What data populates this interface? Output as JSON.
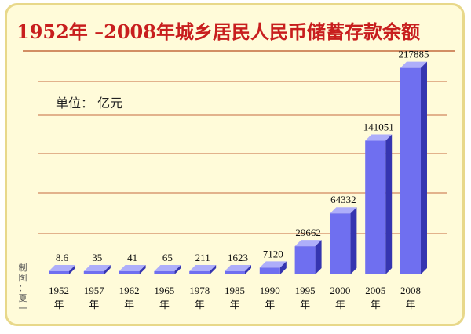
{
  "chart_data": {
    "type": "bar",
    "title": "1952年 –2008年城乡居民人民币储蓄存款余额",
    "unit_label": "单位：  亿元",
    "categories": [
      "1952年",
      "1957年",
      "1962年",
      "1965年",
      "1978年",
      "1985年",
      "1990年",
      "1995年",
      "2000年",
      "2005年",
      "2008年"
    ],
    "categories_year": [
      "1952",
      "1957",
      "1962",
      "1965",
      "1978",
      "1985",
      "1990",
      "1995",
      "2000",
      "2005",
      "2008"
    ],
    "category_suffix": "年",
    "values": [
      8.6,
      35,
      41,
      65,
      211,
      1623,
      7120,
      29662,
      64332,
      141051,
      217885
    ],
    "value_labels": [
      "8.6",
      "35",
      "41",
      "65",
      "211",
      "1623",
      "7120",
      "29662",
      "64332",
      "141051",
      "217885"
    ],
    "ylim": [
      0,
      230000
    ],
    "grid": true,
    "colors": {
      "title": "#c81e1e",
      "bar_front": "#6f6ff0",
      "bar_side": "#3535b0",
      "bar_top": "#aeaefa",
      "gridline": "#c46a3e",
      "background": "#fffbd9"
    },
    "credit": "制图：夏一"
  }
}
